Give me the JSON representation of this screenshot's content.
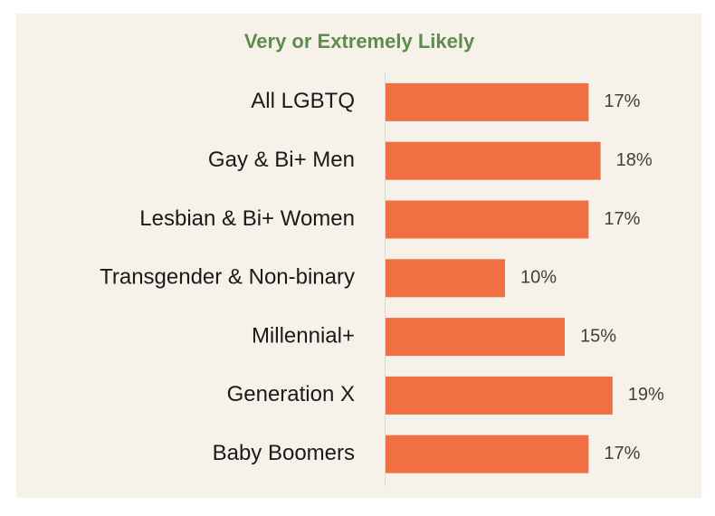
{
  "chart_data": {
    "type": "bar",
    "orientation": "horizontal",
    "title": "Very or Extremely Likely",
    "categories": [
      "All LGBTQ",
      "Gay & Bi+ Men",
      "Lesbian & Bi+ Women",
      "Transgender & Non-binary",
      "Millennial+",
      "Generation X",
      "Baby Boomers"
    ],
    "values": [
      17,
      18,
      17,
      10,
      15,
      19,
      17
    ],
    "value_labels": [
      "17%",
      "18%",
      "17%",
      "10%",
      "15%",
      "19%",
      "17%"
    ],
    "color": "#f07043"
  }
}
